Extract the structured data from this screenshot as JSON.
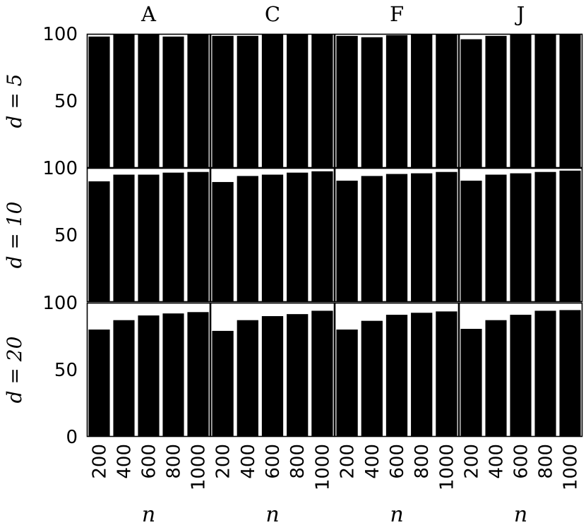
{
  "chart_data": {
    "type": "bar",
    "layout": "small-multiples",
    "columns": [
      "A",
      "C",
      "F",
      "J"
    ],
    "rows": [
      {
        "label": "d = 5"
      },
      {
        "label": "d = 10"
      },
      {
        "label": "d = 20"
      }
    ],
    "categories": [
      "200",
      "400",
      "600",
      "800",
      "1000"
    ],
    "xlabel": "n",
    "ylim": [
      0,
      100
    ],
    "yticks": [
      "0",
      "50",
      "100"
    ],
    "bar_color": "#000000",
    "values": [
      [
        [
          98,
          100,
          100,
          98,
          100
        ],
        [
          98.5,
          98.5,
          100,
          100,
          100
        ],
        [
          98.5,
          97.5,
          99,
          100,
          100
        ],
        [
          96,
          98.5,
          100,
          100,
          100
        ]
      ],
      [
        [
          90,
          95,
          95,
          96.5,
          97
        ],
        [
          89.5,
          94,
          95,
          96.5,
          97.5
        ],
        [
          90.5,
          94,
          95.5,
          96,
          97
        ],
        [
          90.5,
          95,
          96,
          97,
          98
        ]
      ],
      [
        [
          80,
          87,
          90.5,
          92,
          93
        ],
        [
          79,
          87,
          90,
          91.5,
          94
        ],
        [
          80,
          86.5,
          91,
          92.5,
          93.5
        ],
        [
          80.5,
          87,
          91,
          94,
          94.5
        ]
      ]
    ]
  }
}
